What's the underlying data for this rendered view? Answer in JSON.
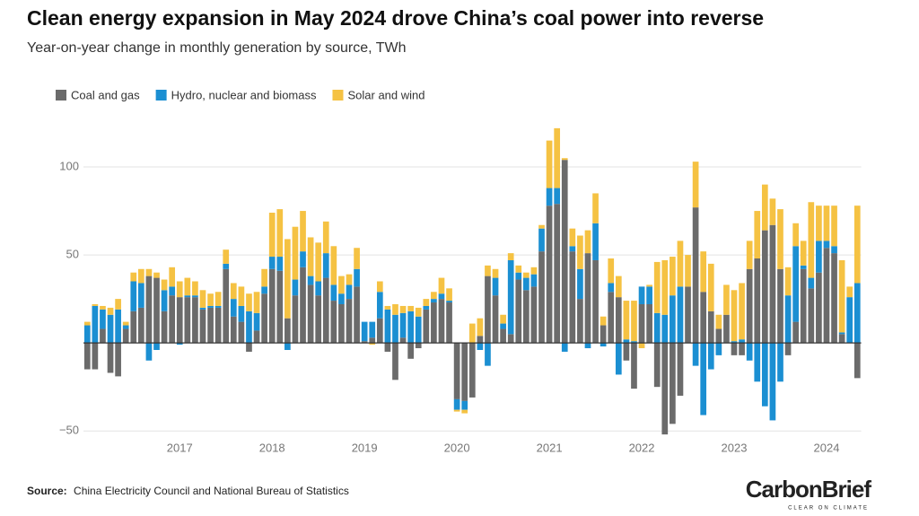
{
  "chart_data": {
    "type": "stacked_bar",
    "title": "Clean energy expansion in May 2024 drove China’s coal power into reverse",
    "subtitle": "Year-on-year change in monthly generation by source, TWh",
    "source_label": "Source:",
    "source": "China Electricity Council and National Bureau of Statistics",
    "logo": {
      "name": "CarbonBrief",
      "tagline": "CLEAR ON CLIMATE"
    },
    "categories": [
      null,
      null,
      null,
      null,
      null,
      null,
      null,
      null,
      null,
      null,
      null,
      null,
      "2017",
      null,
      null,
      null,
      null,
      null,
      null,
      null,
      null,
      null,
      null,
      null,
      "2018",
      null,
      null,
      null,
      null,
      null,
      null,
      null,
      null,
      null,
      null,
      null,
      "2019",
      null,
      null,
      null,
      null,
      null,
      null,
      null,
      null,
      null,
      null,
      null,
      "2020",
      null,
      null,
      null,
      null,
      null,
      null,
      null,
      null,
      null,
      null,
      null,
      "2021",
      null,
      null,
      null,
      null,
      null,
      null,
      null,
      null,
      null,
      null,
      null,
      "2022",
      null,
      null,
      null,
      null,
      null,
      null,
      null,
      null,
      null,
      null,
      null,
      "2023",
      null,
      null,
      null,
      null,
      null,
      null,
      null,
      null,
      null,
      null,
      null,
      "2024",
      null,
      null,
      null,
      null
    ],
    "series": [
      {
        "name": "Coal and gas",
        "color": "#6b6b6b",
        "values": [
          -15,
          -15,
          8,
          -17,
          -19,
          8,
          18,
          20,
          38,
          37,
          18,
          27,
          26,
          26,
          26,
          19,
          20,
          20,
          42,
          15,
          12,
          -5,
          7,
          28,
          42,
          41,
          14,
          27,
          43,
          33,
          27,
          37,
          24,
          22,
          25,
          32,
          1,
          3,
          14,
          -5,
          -21,
          3,
          -9,
          -3,
          19,
          23,
          25,
          23,
          -32,
          -33,
          -31,
          4,
          38,
          27,
          8,
          5,
          36,
          30,
          32,
          52,
          78,
          79,
          104,
          52,
          25,
          51,
          47,
          10,
          29,
          26,
          -10,
          -26,
          22,
          22,
          -25,
          -52,
          -46,
          -30,
          32,
          77,
          29,
          18,
          8,
          16,
          -7,
          -7,
          42,
          48,
          64,
          67,
          42,
          -7,
          12,
          42,
          31,
          40,
          54,
          51,
          5,
          0,
          -20
        ]
      },
      {
        "name": "Hydro, nuclear and biomass",
        "color": "#1b8fd2",
        "values": [
          10,
          21,
          11,
          16,
          19,
          2,
          17,
          14,
          -10,
          -4,
          12,
          5,
          -1,
          1,
          1,
          1,
          1,
          1,
          3,
          10,
          9,
          18,
          10,
          4,
          7,
          8,
          -4,
          9,
          9,
          5,
          8,
          14,
          9,
          6,
          8,
          10,
          11,
          9,
          15,
          19,
          16,
          14,
          18,
          15,
          2,
          2,
          3,
          1,
          -6,
          -5,
          0,
          -4,
          -13,
          10,
          3,
          42,
          4,
          7,
          7,
          13,
          10,
          9,
          -5,
          3,
          17,
          -3,
          21,
          -2,
          5,
          -18,
          2,
          1,
          10,
          10,
          17,
          16,
          27,
          32,
          0,
          -13,
          -41,
          -15,
          -7,
          0,
          1,
          2,
          -10,
          -22,
          -36,
          -44,
          -22,
          27,
          43,
          2,
          6,
          18,
          4,
          4,
          1,
          26,
          34
        ]
      },
      {
        "name": "Solar and wind",
        "color": "#f5c243",
        "values": [
          2,
          1,
          2,
          4,
          6,
          2,
          5,
          8,
          4,
          3,
          6,
          11,
          9,
          10,
          8,
          10,
          7,
          8,
          8,
          9,
          11,
          10,
          12,
          10,
          25,
          27,
          45,
          30,
          23,
          22,
          22,
          18,
          22,
          10,
          6,
          12,
          0,
          -1,
          6,
          2,
          6,
          4,
          3,
          5,
          4,
          4,
          9,
          7,
          -1,
          -2,
          11,
          10,
          6,
          5,
          5,
          4,
          4,
          3,
          4,
          2,
          27,
          34,
          1,
          10,
          19,
          13,
          17,
          5,
          14,
          12,
          22,
          23,
          -3,
          1,
          29,
          31,
          22,
          26,
          18,
          26,
          23,
          27,
          8,
          17,
          29,
          32,
          16,
          27,
          26,
          15,
          34,
          16,
          13,
          14,
          43,
          20,
          20,
          23,
          41,
          6,
          44
        ]
      }
    ],
    "ylim": [
      -55,
      125
    ],
    "yticks": [
      {
        "value": -50,
        "label": "−50"
      },
      50,
      100
    ],
    "grid": true
  }
}
